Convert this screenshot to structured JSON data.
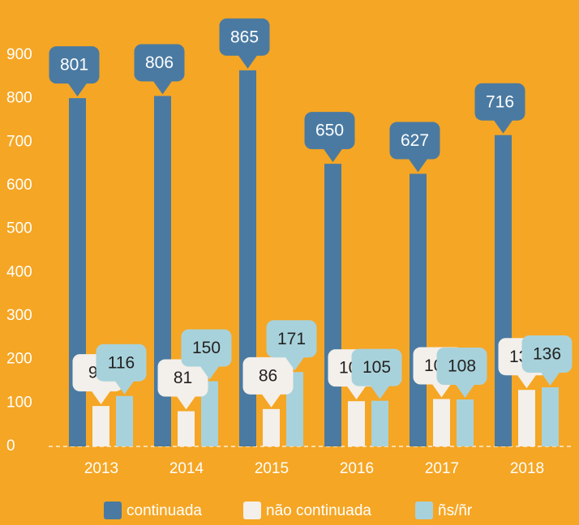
{
  "chart_data": {
    "type": "bar",
    "categories": [
      "2013",
      "2014",
      "2015",
      "2016",
      "2017",
      "2018"
    ],
    "series": [
      {
        "name": "continuada",
        "color": "#4a7aa2",
        "values": [
          801,
          806,
          865,
          650,
          627,
          716
        ]
      },
      {
        "name": "não continuada",
        "color": "#f3efea",
        "values": [
          93,
          81,
          86,
          104,
          109,
          130
        ]
      },
      {
        "name": "ñs/ñr",
        "color": "#a8d2db",
        "values": [
          116,
          150,
          171,
          105,
          108,
          136
        ]
      }
    ],
    "ylim": [
      0,
      900
    ],
    "yticks": [
      0,
      100,
      200,
      300,
      400,
      500,
      600,
      700,
      800,
      900
    ],
    "legend": "bottom"
  }
}
